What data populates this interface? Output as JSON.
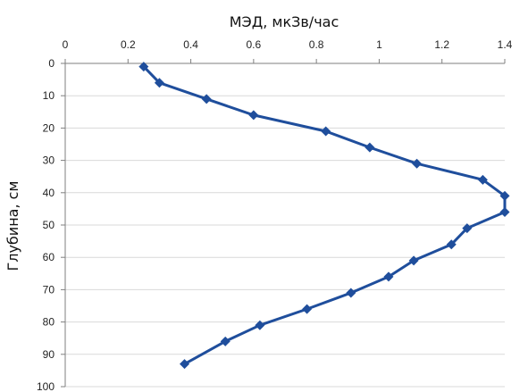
{
  "chart_data": {
    "type": "line",
    "title": "",
    "xlabel": "МЭД, мкЗв/час",
    "ylabel": "Глубина, см",
    "x_axis_position": "top",
    "y_axis_reversed": true,
    "xlim": [
      0,
      1.4
    ],
    "ylim": [
      0,
      100
    ],
    "x_ticks": [
      "0",
      "0.2",
      "0.4",
      "0.6",
      "0.8",
      "1",
      "1.2",
      "1.4"
    ],
    "y_ticks": [
      "0",
      "10",
      "20",
      "30",
      "40",
      "50",
      "60",
      "70",
      "80",
      "90",
      "100"
    ],
    "grid": "horizontal",
    "legend": "none",
    "series": [
      {
        "color": "#1f4e9c",
        "marker": "diamond",
        "x": [
          0.25,
          0.3,
          0.45,
          0.6,
          0.83,
          0.97,
          1.12,
          1.33,
          1.4,
          1.4,
          1.28,
          1.23,
          1.11,
          1.03,
          0.91,
          0.77,
          0.62,
          0.51,
          0.38
        ],
        "y": [
          1,
          6,
          11,
          16,
          21,
          26,
          31,
          36,
          41,
          46,
          51,
          56,
          61,
          66,
          71,
          76,
          81,
          86,
          93
        ]
      }
    ]
  }
}
